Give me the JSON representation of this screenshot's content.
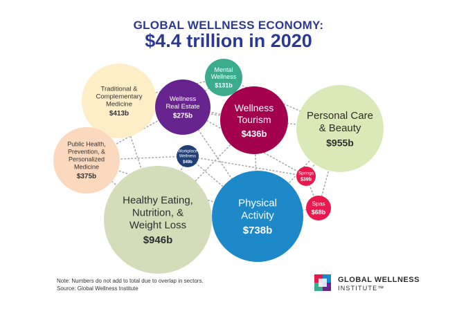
{
  "title_line1": "GLOBAL WELLNESS ECONOMY:",
  "title_line2": "$4.4 trillion in 2020",
  "chart_data": {
    "type": "bubble",
    "unit": "US$ billions",
    "sectors": [
      {
        "lines": [
          "Personal Care",
          "& Beauty"
        ],
        "value_label": "$955b",
        "value": 955,
        "color": "#dbe9b8",
        "text_color": "#2d2d2d"
      },
      {
        "lines": [
          "Healthy Eating,",
          "Nutrition, &",
          "Weight Loss"
        ],
        "value_label": "$946b",
        "value": 946,
        "color": "#d4dcba",
        "text_color": "#2d2d2d"
      },
      {
        "lines": [
          "Physical",
          "Activity"
        ],
        "value_label": "$738b",
        "value": 738,
        "color": "#1d89c8",
        "text_color": "#ffffff"
      },
      {
        "lines": [
          "Wellness",
          "Tourism"
        ],
        "value_label": "$436b",
        "value": 436,
        "color": "#a3004e",
        "text_color": "#ffffff"
      },
      {
        "lines": [
          "Traditional &",
          "Complementary",
          "Medicine"
        ],
        "value_label": "$413b",
        "value": 413,
        "color": "#fdeec8",
        "text_color": "#333333"
      },
      {
        "lines": [
          "Public Health,",
          "Prevention, &",
          "Personalized",
          "Medicine"
        ],
        "value_label": "$375b",
        "value": 375,
        "color": "#fbd9be",
        "text_color": "#333333"
      },
      {
        "lines": [
          "Wellness",
          "Real Estate"
        ],
        "value_label": "$275b",
        "value": 275,
        "color": "#67248f",
        "text_color": "#ffffff"
      },
      {
        "lines": [
          "Mental",
          "Wellness"
        ],
        "value_label": "$131b",
        "value": 131,
        "color": "#3bab8e",
        "text_color": "#ffffff"
      },
      {
        "lines": [
          "Spas"
        ],
        "value_label": "$68b",
        "value": 68,
        "color": "#e8194f",
        "text_color": "#ffffff"
      },
      {
        "lines": [
          "Workplace",
          "Wellness"
        ],
        "value_label": "$49b",
        "value": 49,
        "color": "#1f3f76",
        "text_color": "#ffffff"
      },
      {
        "lines": [
          "Springs"
        ],
        "value_label": "$39b",
        "value": 39,
        "color": "#e8194f",
        "text_color": "#ffffff"
      }
    ]
  },
  "footnote": {
    "note": "Note: Numbers do not add to total due to overlap in sectors.",
    "source": "Source: Global Wellness Institute"
  },
  "logo": {
    "line1": "GLOBAL WELLNESS",
    "line2": "INSTITUTE™",
    "colors": [
      "#e8194f",
      "#1d89c8",
      "#3bab8e",
      "#67248f"
    ]
  }
}
